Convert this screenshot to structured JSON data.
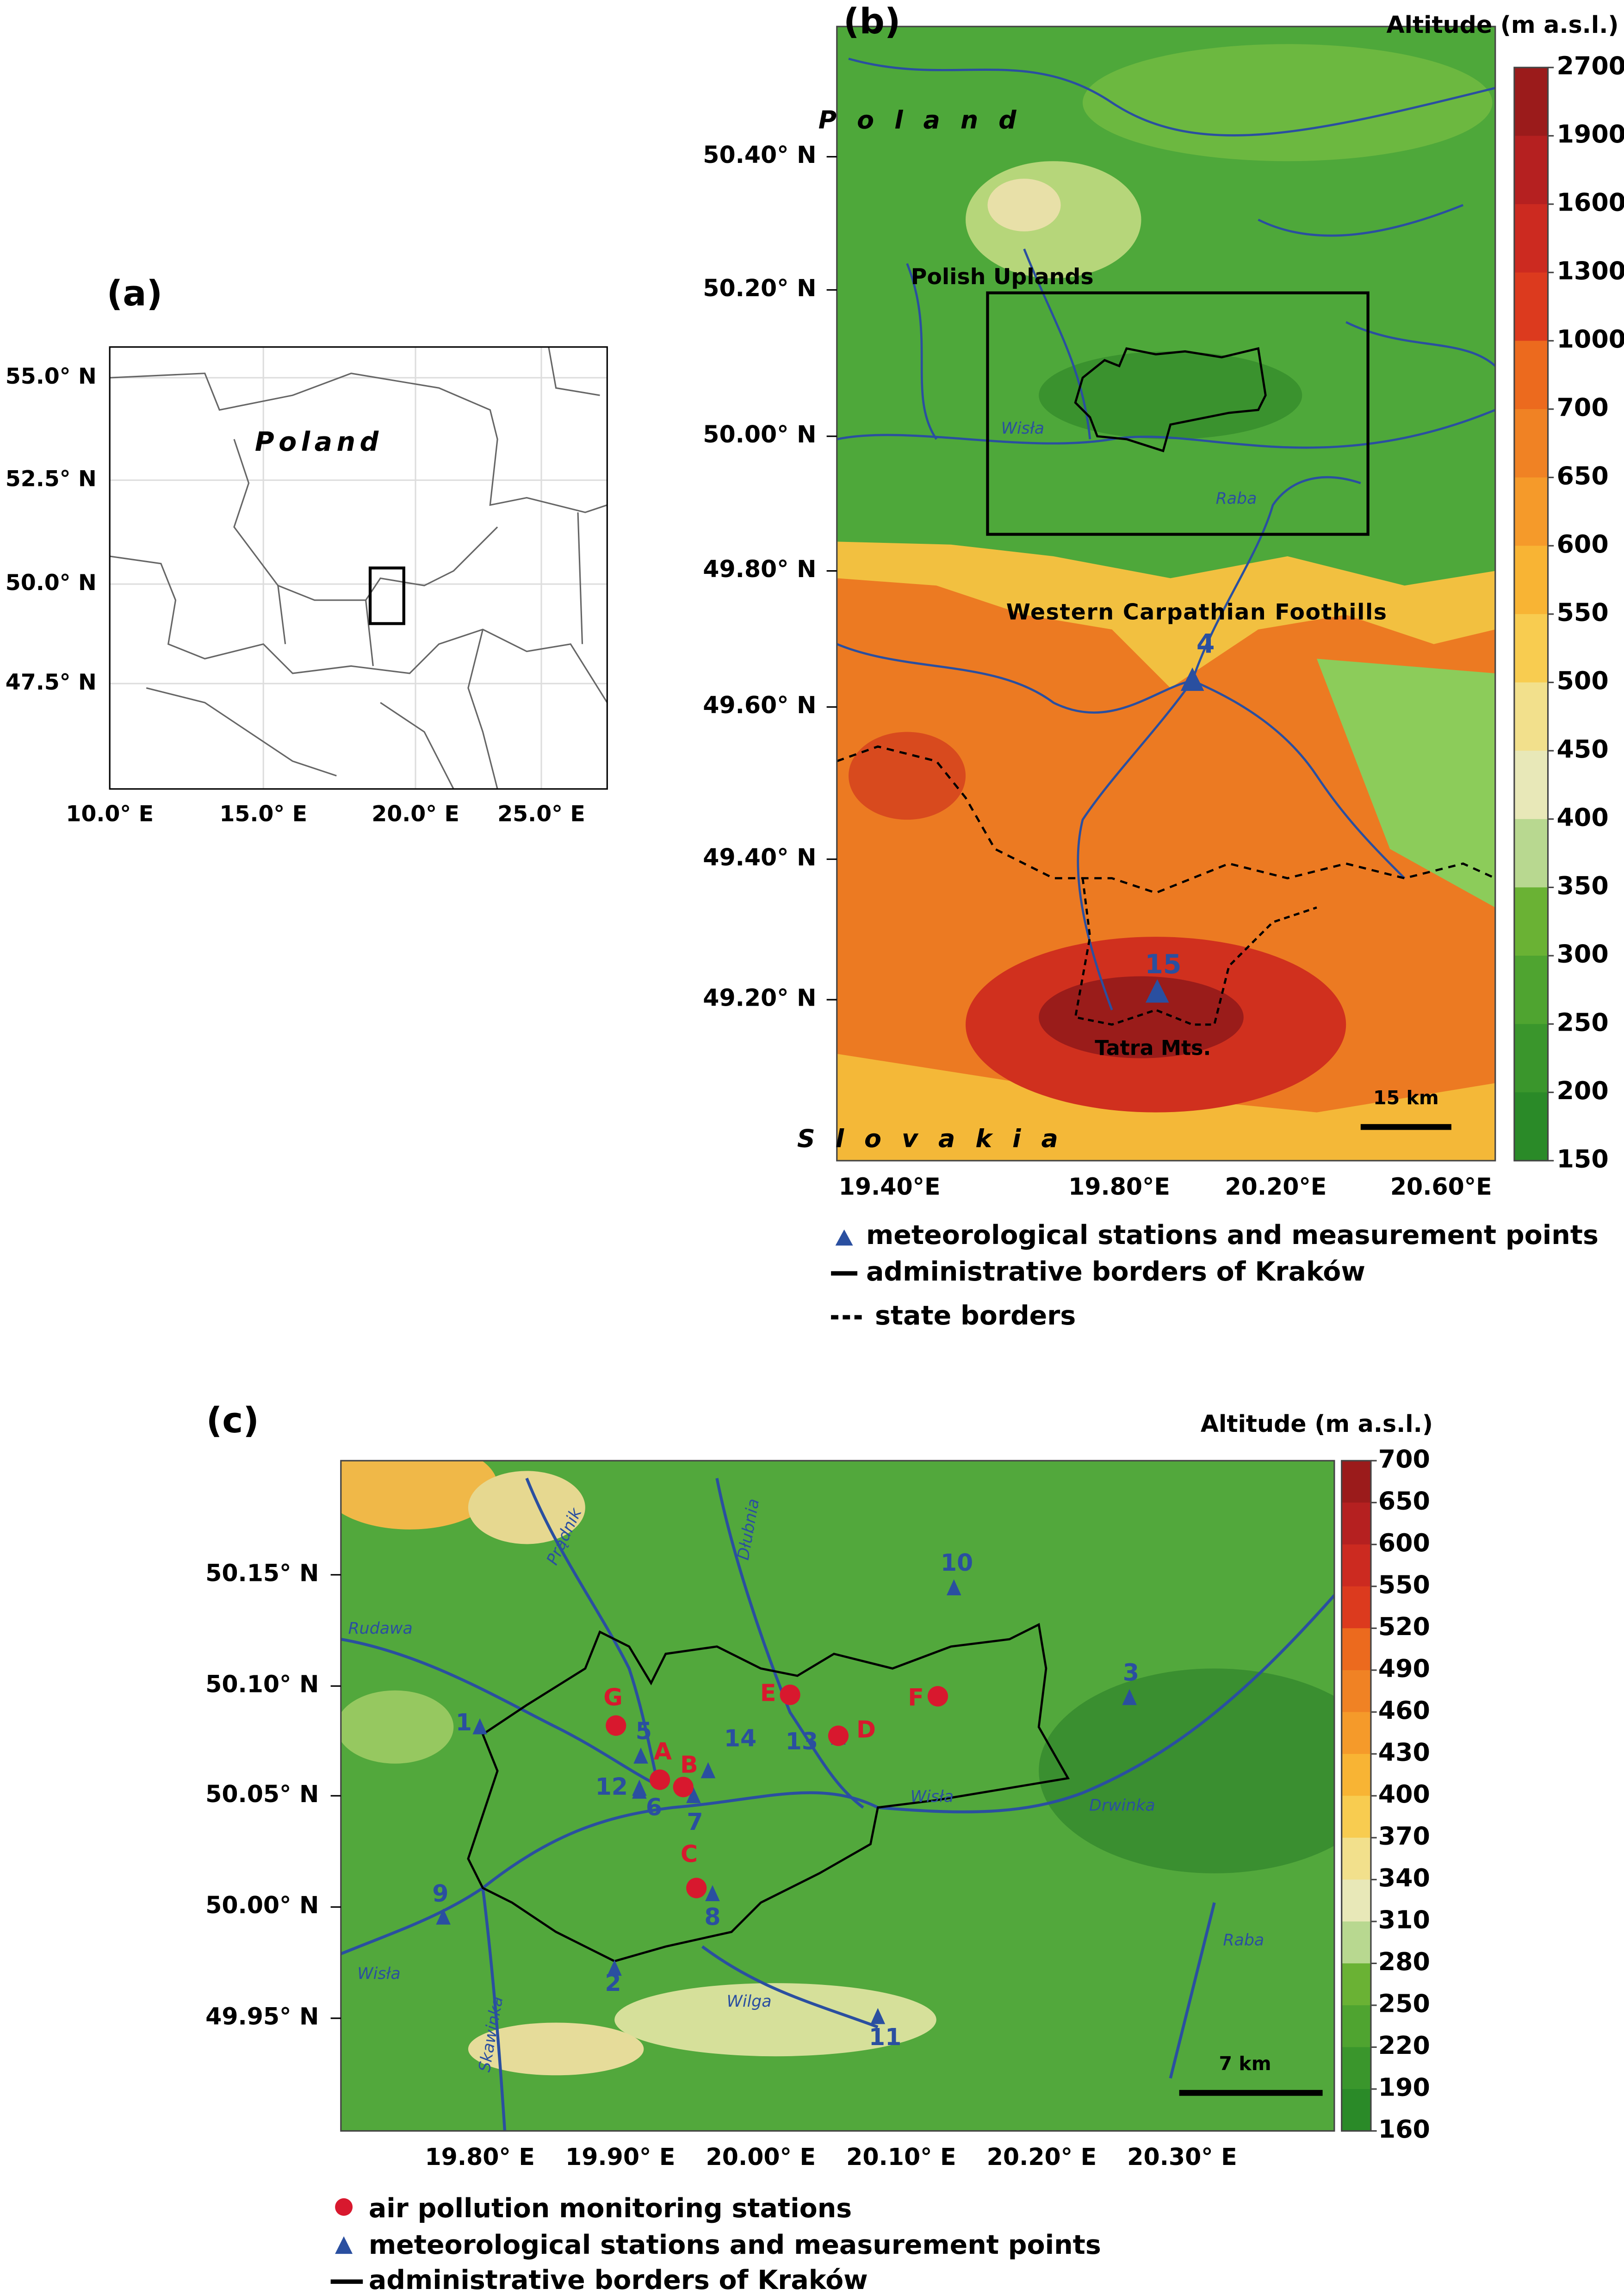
{
  "panel_a": {
    "label": "(a)",
    "country": "Poland",
    "lat_ticks": [
      "55.0° N",
      "52.5° N",
      "50.0° N",
      "47.5° N"
    ],
    "lon_ticks": [
      "10.0° E",
      "15.0° E",
      "20.0° E",
      "25.0° E"
    ]
  },
  "panel_b": {
    "label": "(b)",
    "colorbar_title": "Altitude (m a.s.l.)",
    "colorbar_labels": [
      2700,
      1900,
      1600,
      1300,
      1000,
      700,
      650,
      600,
      550,
      500,
      450,
      400,
      350,
      300,
      250,
      200,
      150
    ],
    "lat_ticks": [
      "50.40° N",
      "50.20° N",
      "50.00° N",
      "49.80° N",
      "49.60° N",
      "49.40° N",
      "49.20° N"
    ],
    "lon_ticks": [
      "19.40°E",
      "19.80°E",
      "20.20°E",
      "20.60°E"
    ],
    "places": [
      "P o l a n d",
      "Polish Uplands",
      "Western Carpathian Foothills",
      "Tatra Mts.",
      "S l o v a k i a"
    ],
    "rivers": [
      "Wisła",
      "Raba"
    ],
    "stations": [
      "4",
      "15"
    ],
    "scale": "15 km",
    "legend": [
      "meteorological stations and measurement points",
      "administrative borders of Kraków",
      "state borders"
    ]
  },
  "panel_c": {
    "label": "(c)",
    "colorbar_title": "Altitude (m a.s.l.)",
    "colorbar_labels": [
      700,
      650,
      600,
      550,
      520,
      490,
      460,
      430,
      400,
      370,
      340,
      310,
      280,
      250,
      220,
      190,
      160
    ],
    "lat_ticks": [
      "50.15° N",
      "50.10° N",
      "50.05° N",
      "50.00° N",
      "49.95° N"
    ],
    "lon_ticks": [
      "19.80° E",
      "19.90° E",
      "20.00° E",
      "20.10° E",
      "20.20° E",
      "20.30° E"
    ],
    "rivers": [
      "Prądnik",
      "Dłubnia",
      "Rudawa",
      "Wisła",
      "Wisła",
      "Drwinka",
      "Raba",
      "Wilga",
      "Skawinka"
    ],
    "meteo_stations": [
      "1",
      "2",
      "3",
      "5",
      "6",
      "7",
      "8",
      "9",
      "10",
      "11",
      "12",
      "13",
      "14"
    ],
    "pollution_stations": [
      "A",
      "B",
      "C",
      "D",
      "E",
      "F",
      "G"
    ],
    "scale": "7 km",
    "legend": [
      "air pollution monitoring stations",
      "meteorological stations and measurement points",
      "administrative borders of Kraków"
    ]
  }
}
